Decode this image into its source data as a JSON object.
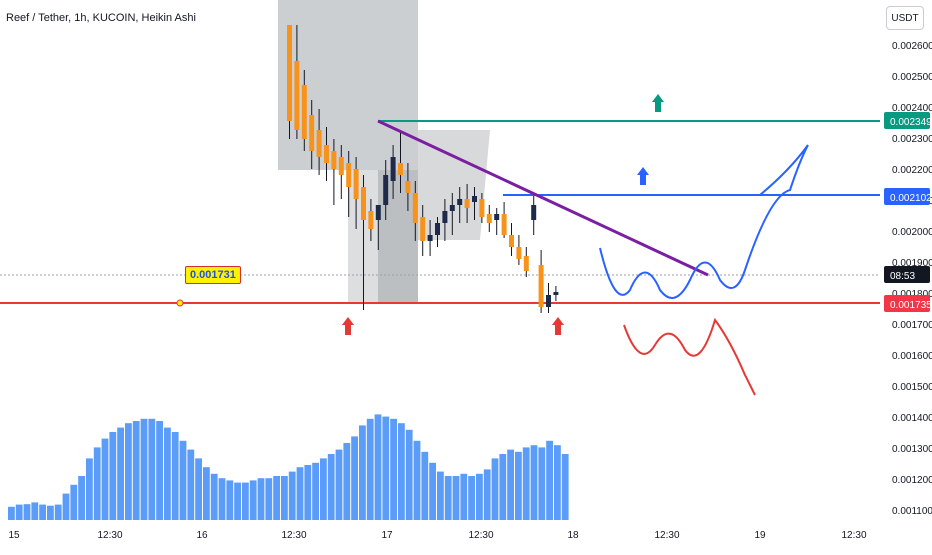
{
  "header": {
    "title": "Reef / Tether, 1h, KUCOIN, Heikin Ashi",
    "unit_button": "USDT"
  },
  "price_axis": {
    "ticks": [
      "0.002600",
      "0.002500",
      "0.002400",
      "0.002300",
      "0.002200",
      "0.002100",
      "0.002000",
      "0.001900",
      "0.001800",
      "0.001700",
      "0.001600",
      "0.001500",
      "0.001400",
      "0.001300",
      "0.001200",
      "0.001100"
    ],
    "tags": [
      {
        "label": "0.002349",
        "color": "#089981"
      },
      {
        "label": "0.002102",
        "color": "#2962ff"
      },
      {
        "label": "08:53",
        "color": "#131722"
      },
      {
        "label": "0.001735",
        "color": "#f23645"
      }
    ]
  },
  "time_axis": {
    "ticks": [
      "15",
      "12:30",
      "16",
      "12:30",
      "17",
      "12:30",
      "18",
      "12:30",
      "19",
      "12:30"
    ]
  },
  "annotations": {
    "support_label": "0.001731"
  },
  "colors": {
    "candle": "#f7931a",
    "volume": "#5a9cf8",
    "support": "#e53935",
    "resistance_green": "#089981",
    "resistance_blue": "#2962ff",
    "trendline": "#7b1fa2"
  },
  "chart_data": {
    "type": "candlestick",
    "title": "Reef / Tether, 1h, KUCOIN, Heikin Ashi",
    "ylim": [
      0.00105,
      0.0027
    ],
    "horizontal_levels": [
      0.002349,
      0.002102,
      0.001735
    ],
    "current_price_time": "08:53",
    "ohlc": [
      [
        0.0027,
        0.0027,
        0.00232,
        0.00238
      ],
      [
        0.00258,
        0.0027,
        0.00232,
        0.00235
      ],
      [
        0.0025,
        0.00255,
        0.00228,
        0.00232
      ],
      [
        0.0024,
        0.00245,
        0.00222,
        0.00228
      ],
      [
        0.00235,
        0.00242,
        0.0022,
        0.00226
      ],
      [
        0.0023,
        0.00236,
        0.00218,
        0.00224
      ],
      [
        0.00228,
        0.00232,
        0.0021,
        0.00222
      ],
      [
        0.00226,
        0.0023,
        0.00212,
        0.0022
      ],
      [
        0.00224,
        0.00228,
        0.00206,
        0.00216
      ],
      [
        0.00222,
        0.00226,
        0.00202,
        0.00212
      ],
      [
        0.00216,
        0.0022,
        0.00175,
        0.00205
      ],
      [
        0.00208,
        0.00212,
        0.00198,
        0.00202
      ],
      [
        0.00205,
        0.0021,
        0.00195,
        0.0021
      ],
      [
        0.0021,
        0.00225,
        0.00205,
        0.0022
      ],
      [
        0.00218,
        0.0023,
        0.00212,
        0.00226
      ],
      [
        0.00224,
        0.00234,
        0.00214,
        0.0022
      ],
      [
        0.00218,
        0.00224,
        0.00208,
        0.00214
      ],
      [
        0.00214,
        0.00218,
        0.00198,
        0.00204
      ],
      [
        0.00206,
        0.0021,
        0.00193,
        0.00198
      ],
      [
        0.00198,
        0.00205,
        0.00193,
        0.002
      ],
      [
        0.002,
        0.00206,
        0.00196,
        0.00204
      ],
      [
        0.00204,
        0.00212,
        0.00198,
        0.00208
      ],
      [
        0.00208,
        0.00214,
        0.002,
        0.0021
      ],
      [
        0.0021,
        0.00216,
        0.00204,
        0.00212
      ],
      [
        0.00212,
        0.00217,
        0.00204,
        0.00209
      ],
      [
        0.00211,
        0.00216,
        0.00205,
        0.00213
      ],
      [
        0.00212,
        0.00214,
        0.00204,
        0.00206
      ],
      [
        0.00207,
        0.0021,
        0.00201,
        0.00204
      ],
      [
        0.00205,
        0.00209,
        0.002,
        0.00207
      ],
      [
        0.00207,
        0.00211,
        0.00199,
        0.002
      ],
      [
        0.002,
        0.00204,
        0.00193,
        0.00196
      ],
      [
        0.00196,
        0.002,
        0.0019,
        0.00192
      ],
      [
        0.00193,
        0.00196,
        0.00186,
        0.00188
      ],
      [
        0.00205,
        0.00213,
        0.002,
        0.0021
      ],
      [
        0.0019,
        0.00195,
        0.00174,
        0.00176
      ],
      [
        0.00176,
        0.00184,
        0.00174,
        0.0018
      ],
      [
        0.0018,
        0.00183,
        0.00178,
        0.00181
      ]
    ],
    "volume": [
      0.6,
      0.7,
      0.72,
      0.8,
      0.7,
      0.65,
      0.7,
      1.2,
      1.6,
      2.0,
      2.8,
      3.3,
      3.7,
      4.0,
      4.2,
      4.4,
      4.5,
      4.6,
      4.6,
      4.5,
      4.2,
      4.0,
      3.6,
      3.2,
      2.8,
      2.4,
      2.1,
      1.9,
      1.8,
      1.7,
      1.7,
      1.8,
      1.9,
      1.9,
      2.0,
      2.0,
      2.2,
      2.4,
      2.5,
      2.6,
      2.8,
      3.0,
      3.2,
      3.5,
      3.8,
      4.3,
      4.6,
      4.8,
      4.7,
      4.6,
      4.4,
      4.1,
      3.6,
      3.1,
      2.6,
      2.2,
      2.0,
      2.0,
      2.1,
      2.0,
      2.1,
      2.3,
      2.8,
      3.0,
      3.2,
      3.1,
      3.3,
      3.4,
      3.3,
      3.6,
      3.4,
      3.0
    ]
  }
}
